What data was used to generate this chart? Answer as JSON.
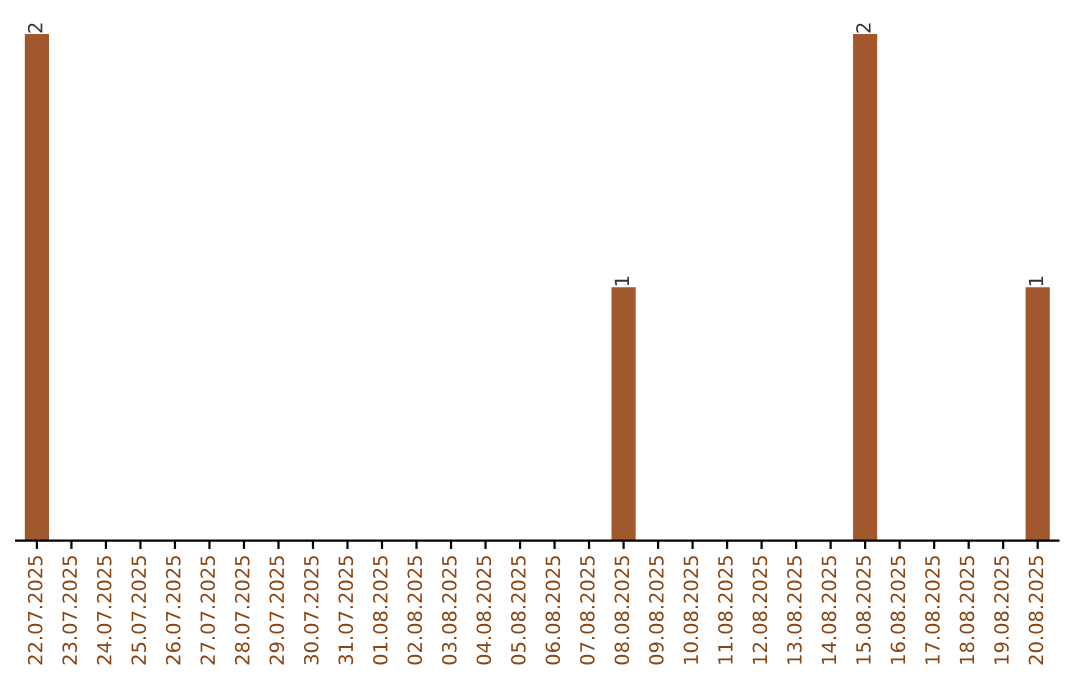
{
  "chart_data": {
    "type": "bar",
    "categories": [
      "22.07.2025",
      "23.07.2025",
      "24.07.2025",
      "25.07.2025",
      "26.07.2025",
      "27.07.2025",
      "28.07.2025",
      "29.07.2025",
      "30.07.2025",
      "31.07.2025",
      "01.08.2025",
      "02.08.2025",
      "03.08.2025",
      "04.08.2025",
      "05.08.2025",
      "06.08.2025",
      "07.08.2025",
      "08.08.2025",
      "09.08.2025",
      "10.08.2025",
      "11.08.2025",
      "12.08.2025",
      "13.08.2025",
      "14.08.2025",
      "15.08.2025",
      "16.08.2025",
      "17.08.2025",
      "18.08.2025",
      "19.08.2025",
      "20.08.2025"
    ],
    "values": [
      2,
      0,
      0,
      0,
      0,
      0,
      0,
      0,
      0,
      0,
      0,
      0,
      0,
      0,
      0,
      0,
      0,
      1,
      0,
      0,
      0,
      0,
      0,
      0,
      2,
      0,
      0,
      0,
      0,
      1
    ],
    "value_labels": [
      "2",
      null,
      null,
      null,
      null,
      null,
      null,
      null,
      null,
      null,
      null,
      null,
      null,
      null,
      null,
      null,
      null,
      "1",
      null,
      null,
      null,
      null,
      null,
      null,
      "2",
      null,
      null,
      null,
      null,
      "1"
    ],
    "color": "#a0582c",
    "ylim": [
      0,
      2
    ],
    "tick_labels": "x",
    "grid": false,
    "legend": false
  }
}
